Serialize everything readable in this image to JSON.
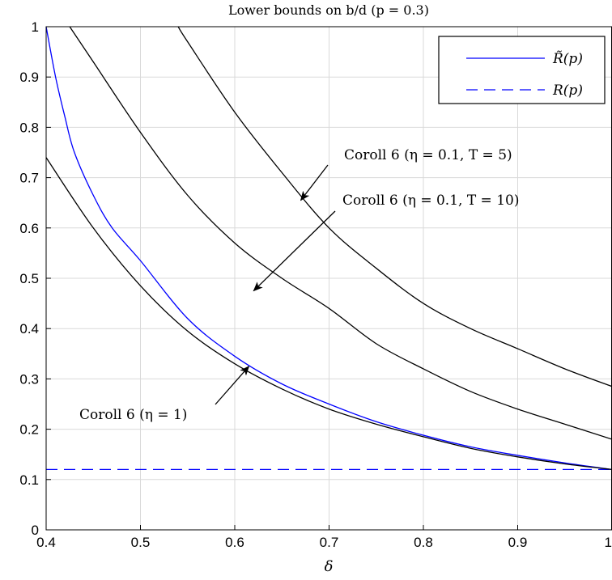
{
  "chart_data": {
    "type": "line",
    "title": "Lower bounds on b/d (p = 0.3)",
    "xlabel": "δ",
    "ylabel": "",
    "xlim": [
      0.4,
      1.0
    ],
    "ylim": [
      0,
      1
    ],
    "xticks": [
      0.4,
      0.5,
      0.6,
      0.7,
      0.8,
      0.9,
      1
    ],
    "xtick_labels": [
      "0.4",
      "0.5",
      "0.6",
      "0.7",
      "0.8",
      "0.9",
      "1"
    ],
    "yticks": [
      0,
      0.1,
      0.2,
      0.3,
      0.4,
      0.5,
      0.6,
      0.7,
      0.8,
      0.9,
      1
    ],
    "ytick_labels": [
      "0",
      "0.1",
      "0.2",
      "0.3",
      "0.4",
      "0.5",
      "0.6",
      "0.7",
      "0.8",
      "0.9",
      "1"
    ],
    "grid": true,
    "legend_position": "top-right",
    "series": [
      {
        "name": "R̃(p)",
        "color": "#0000ff",
        "style": "solid",
        "x": [
          0.4,
          0.41,
          0.42,
          0.43,
          0.45,
          0.47,
          0.5,
          0.55,
          0.6,
          0.65,
          0.7,
          0.75,
          0.8,
          0.85,
          0.9,
          0.95,
          1.0
        ],
        "y": [
          1.0,
          0.9,
          0.82,
          0.75,
          0.665,
          0.6,
          0.535,
          0.42,
          0.345,
          0.29,
          0.25,
          0.215,
          0.188,
          0.165,
          0.148,
          0.133,
          0.12
        ]
      },
      {
        "name": "R(p)",
        "color": "#0000ff",
        "style": "dashed",
        "x": [
          0.4,
          1.0
        ],
        "y": [
          0.12,
          0.12
        ]
      },
      {
        "color": "#000000",
        "style": "solid",
        "x": [
          0.4,
          0.45,
          0.5,
          0.55,
          0.6,
          0.65,
          0.7,
          0.75,
          0.8,
          0.85,
          0.9,
          0.95,
          1.0
        ],
        "y": [
          0.74,
          0.6,
          0.485,
          0.395,
          0.33,
          0.28,
          0.24,
          0.21,
          0.185,
          0.162,
          0.145,
          0.131,
          0.12
        ]
      },
      {
        "color": "#000000",
        "style": "solid",
        "x": [
          0.425,
          0.45,
          0.5,
          0.55,
          0.6,
          0.65,
          0.7,
          0.75,
          0.8,
          0.85,
          0.9,
          0.95,
          1.0
        ],
        "y": [
          1.0,
          0.93,
          0.79,
          0.665,
          0.57,
          0.5,
          0.44,
          0.37,
          0.32,
          0.275,
          0.24,
          0.21,
          0.18
        ]
      },
      {
        "color": "#000000",
        "style": "solid",
        "x": [
          0.54,
          0.55,
          0.6,
          0.65,
          0.7,
          0.75,
          0.8,
          0.85,
          0.9,
          0.95,
          1.0
        ],
        "y": [
          1.0,
          0.97,
          0.83,
          0.71,
          0.6,
          0.52,
          0.45,
          0.4,
          0.36,
          0.32,
          0.285
        ]
      }
    ],
    "annotations": [
      {
        "text": "Coroll 6 (η = 0.1, T = 5)",
        "target": [
          0.67,
          0.655
        ]
      },
      {
        "text": "Coroll 6 (η = 0.1, T = 10)",
        "target": [
          0.62,
          0.475
        ]
      },
      {
        "text": "Coroll 6 (η = 1)",
        "target": [
          0.615,
          0.325
        ]
      }
    ],
    "colors": {
      "axis": "#000000",
      "grid": "#d9d9d9",
      "background": "#ffffff"
    }
  }
}
